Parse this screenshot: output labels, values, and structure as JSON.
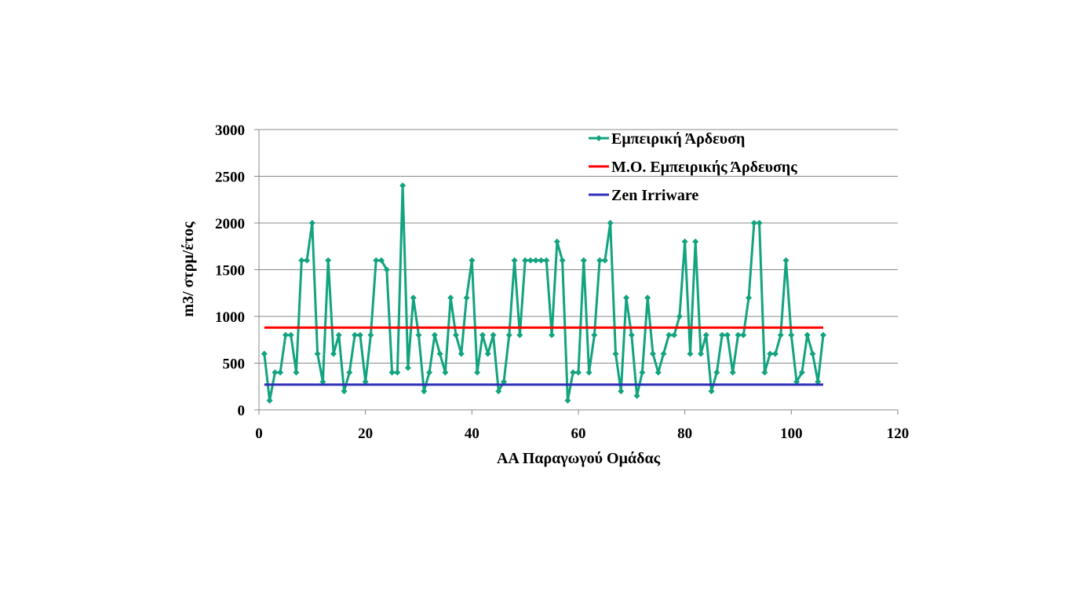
{
  "chart_data": {
    "type": "line",
    "title": "",
    "xlabel": "ΑΑ Παραγωγού Ομάδας",
    "ylabel": "m3/ στρμ/έτος",
    "xlim": [
      0,
      120
    ],
    "ylim": [
      0,
      3000
    ],
    "xticks": [
      "0",
      "20",
      "40",
      "60",
      "80",
      "100",
      "120"
    ],
    "yticks": [
      "0",
      "500",
      "1000",
      "1500",
      "2000",
      "2500",
      "3000"
    ],
    "grid": "horizontal",
    "legend_position": "top-right",
    "series": [
      {
        "name": "Εμπειρική Άρδευση",
        "color": "#12a37f",
        "marker": "diamond",
        "x": [
          1,
          2,
          3,
          4,
          5,
          6,
          7,
          8,
          9,
          10,
          11,
          12,
          13,
          14,
          15,
          16,
          17,
          18,
          19,
          20,
          21,
          22,
          23,
          24,
          25,
          26,
          27,
          28,
          29,
          30,
          31,
          32,
          33,
          34,
          35,
          36,
          37,
          38,
          39,
          40,
          41,
          42,
          43,
          44,
          45,
          46,
          47,
          48,
          49,
          50,
          51,
          52,
          53,
          54,
          55,
          56,
          57,
          58,
          59,
          60,
          61,
          62,
          63,
          64,
          65,
          66,
          67,
          68,
          69,
          70,
          71,
          72,
          73,
          74,
          75,
          76,
          77,
          78,
          79,
          80,
          81,
          82,
          83,
          84,
          85,
          86,
          87,
          88,
          89,
          90,
          91,
          92,
          93,
          94,
          95,
          96,
          97,
          98,
          99,
          100,
          101,
          102,
          103,
          104,
          105,
          106
        ],
        "values": [
          600,
          100,
          400,
          400,
          800,
          800,
          400,
          1600,
          1600,
          2000,
          600,
          300,
          1600,
          600,
          800,
          200,
          400,
          800,
          800,
          300,
          800,
          1600,
          1600,
          1500,
          400,
          400,
          2400,
          450,
          1200,
          800,
          200,
          400,
          800,
          600,
          400,
          1200,
          800,
          600,
          1200,
          1600,
          400,
          800,
          600,
          800,
          200,
          300,
          800,
          1600,
          800,
          1600,
          1600,
          1600,
          1600,
          1600,
          800,
          1800,
          1600,
          100,
          400,
          400,
          1600,
          400,
          800,
          1600,
          1600,
          2000,
          600,
          200,
          1200,
          800,
          150,
          400,
          1200,
          600,
          400,
          600,
          800,
          800,
          1000,
          1800,
          600,
          1800,
          600,
          800,
          200,
          400,
          800,
          800,
          400,
          800,
          800,
          1200,
          2000,
          2000,
          400,
          600,
          600,
          800,
          1600,
          800,
          300,
          400,
          800,
          600,
          300,
          800
        ]
      },
      {
        "name": "Μ.Ο. Εμπειρικής Άρδευσης",
        "color": "#ff0000",
        "x": [
          1,
          106
        ],
        "values": [
          880,
          880
        ]
      },
      {
        "name": "Zen Irriware",
        "color": "#2e2eb8",
        "x": [
          1,
          106
        ],
        "values": [
          270,
          270
        ]
      }
    ]
  }
}
